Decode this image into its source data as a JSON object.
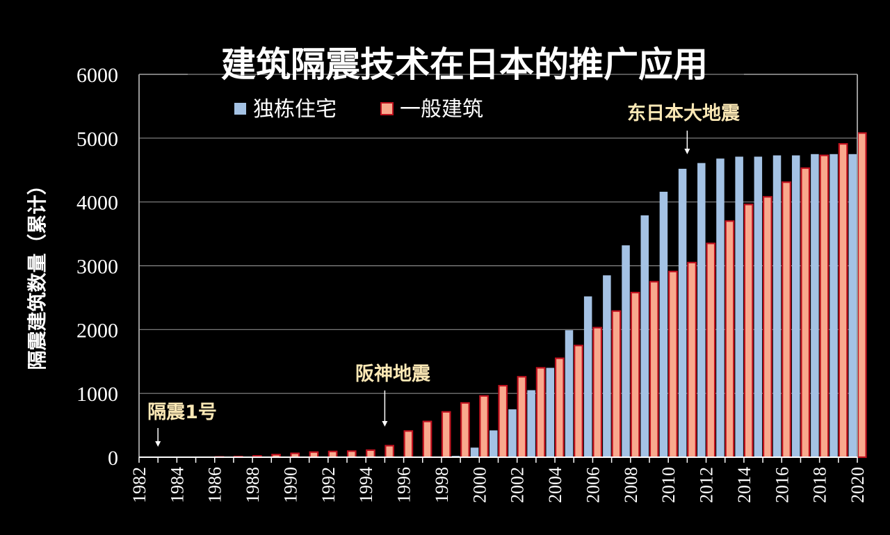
{
  "chart_data": {
    "type": "bar",
    "title": "建筑隔震技术在日本的推广应用",
    "ylabel": "隔震建筑数量（累计）",
    "xlabel": "",
    "ylim": [
      0,
      6000
    ],
    "yticks": [
      "0",
      "1000",
      "2000",
      "3000",
      "4000",
      "5000",
      "6000"
    ],
    "grid": true,
    "legend_position": "top-left",
    "categories": [
      1982,
      1983,
      1984,
      1985,
      1986,
      1987,
      1988,
      1989,
      1990,
      1991,
      1992,
      1993,
      1994,
      1995,
      1996,
      1997,
      1998,
      1999,
      2000,
      2001,
      2002,
      2003,
      2004,
      2005,
      2006,
      2007,
      2008,
      2009,
      2010,
      2011,
      2012,
      2013,
      2014,
      2015,
      2016,
      2017,
      2018,
      2019,
      2020
    ],
    "xtick_labels": [
      "1982",
      "1984",
      "1986",
      "1988",
      "1990",
      "1992",
      "1994",
      "1996",
      "1998",
      "2000",
      "2002",
      "2004",
      "2006",
      "2008",
      "2010",
      "2012",
      "2014",
      "2016",
      "2018",
      "2020"
    ],
    "series": [
      {
        "name": "独栋住宅",
        "color": "#a4c2e4",
        "values": [
          0,
          0,
          3,
          3,
          3,
          3,
          3,
          3,
          3,
          3,
          3,
          3,
          3,
          3,
          3,
          3,
          5,
          20,
          150,
          420,
          750,
          1050,
          1400,
          1990,
          2520,
          2850,
          3320,
          3790,
          4160,
          4520,
          4610,
          4680,
          4710,
          4710,
          4730,
          4730,
          4750,
          4750,
          4750
        ]
      },
      {
        "name": "一般建筑",
        "color": "#f9a98d",
        "border": "#c1121f",
        "values": [
          0,
          0,
          0,
          0,
          5,
          10,
          20,
          40,
          60,
          80,
          90,
          95,
          110,
          180,
          410,
          560,
          710,
          850,
          960,
          1120,
          1260,
          1400,
          1550,
          1750,
          2030,
          2290,
          2580,
          2750,
          2910,
          3050,
          3350,
          3700,
          3960,
          4080,
          4310,
          4530,
          4730,
          4910,
          5080
        ]
      }
    ],
    "annotations": [
      {
        "label": "隔震1号",
        "year": 1983,
        "color": "#fbe8b5"
      },
      {
        "label": "阪神地震",
        "year": 1995,
        "color": "#fbe8b5"
      },
      {
        "label": "东日本大地震",
        "year": 2011,
        "color": "#fbe8b5"
      }
    ]
  }
}
